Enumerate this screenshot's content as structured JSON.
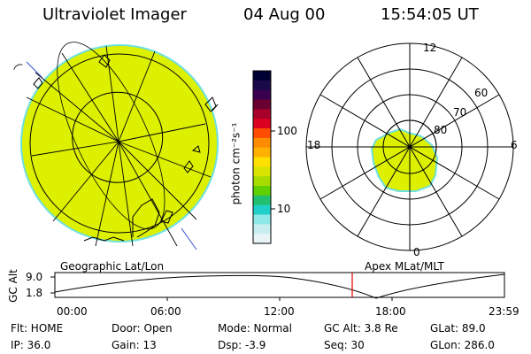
{
  "header": {
    "instrument": "Ultraviolet Imager",
    "date": "04 Aug 00",
    "time": "15:54:05 UT"
  },
  "geo_panel": {
    "label": "Geographic Lat/Lon"
  },
  "polar_panel": {
    "label": "Apex MLat/MLT",
    "mlt_labels": [
      "12",
      "18",
      "6",
      "0"
    ],
    "mlat_labels": [
      "60",
      "70",
      "80"
    ]
  },
  "colorbar": {
    "unit_label": "photon cm⁻²s⁻¹",
    "ticks": [
      "100",
      "10"
    ],
    "colors": [
      "#000033",
      "#1b0a4a",
      "#3a0050",
      "#6a0030",
      "#a8002a",
      "#d90020",
      "#ff4b00",
      "#ff8c00",
      "#ffb000",
      "#ffe000",
      "#d8e400",
      "#a8dc00",
      "#60d000",
      "#20c070",
      "#20d0c8",
      "#8ee8e8",
      "#c8eef0",
      "#e8f4f6"
    ]
  },
  "altitude_plot": {
    "ylabel": "GC Alt",
    "yticks": [
      "9.0",
      "1.8"
    ],
    "xticks": [
      "00:00",
      "06:00",
      "12:00",
      "18:00",
      "23:59"
    ],
    "current_time_marker": "15:54"
  },
  "status": {
    "row1": [
      "Flt: HOME",
      "Door: Open",
      "Mode: Normal",
      "GC Alt: 3.8 Re",
      "GLat:  89.0"
    ],
    "row2": [
      "IP: 36.0",
      "Gain: 13",
      "Dsp:    -3.9",
      "Seq: 30",
      "GLon: 286.0"
    ]
  },
  "colors": {
    "aurora_fill": "#dcf000",
    "aurora_edge": "#6ee0e0",
    "marker": "#e00000"
  }
}
